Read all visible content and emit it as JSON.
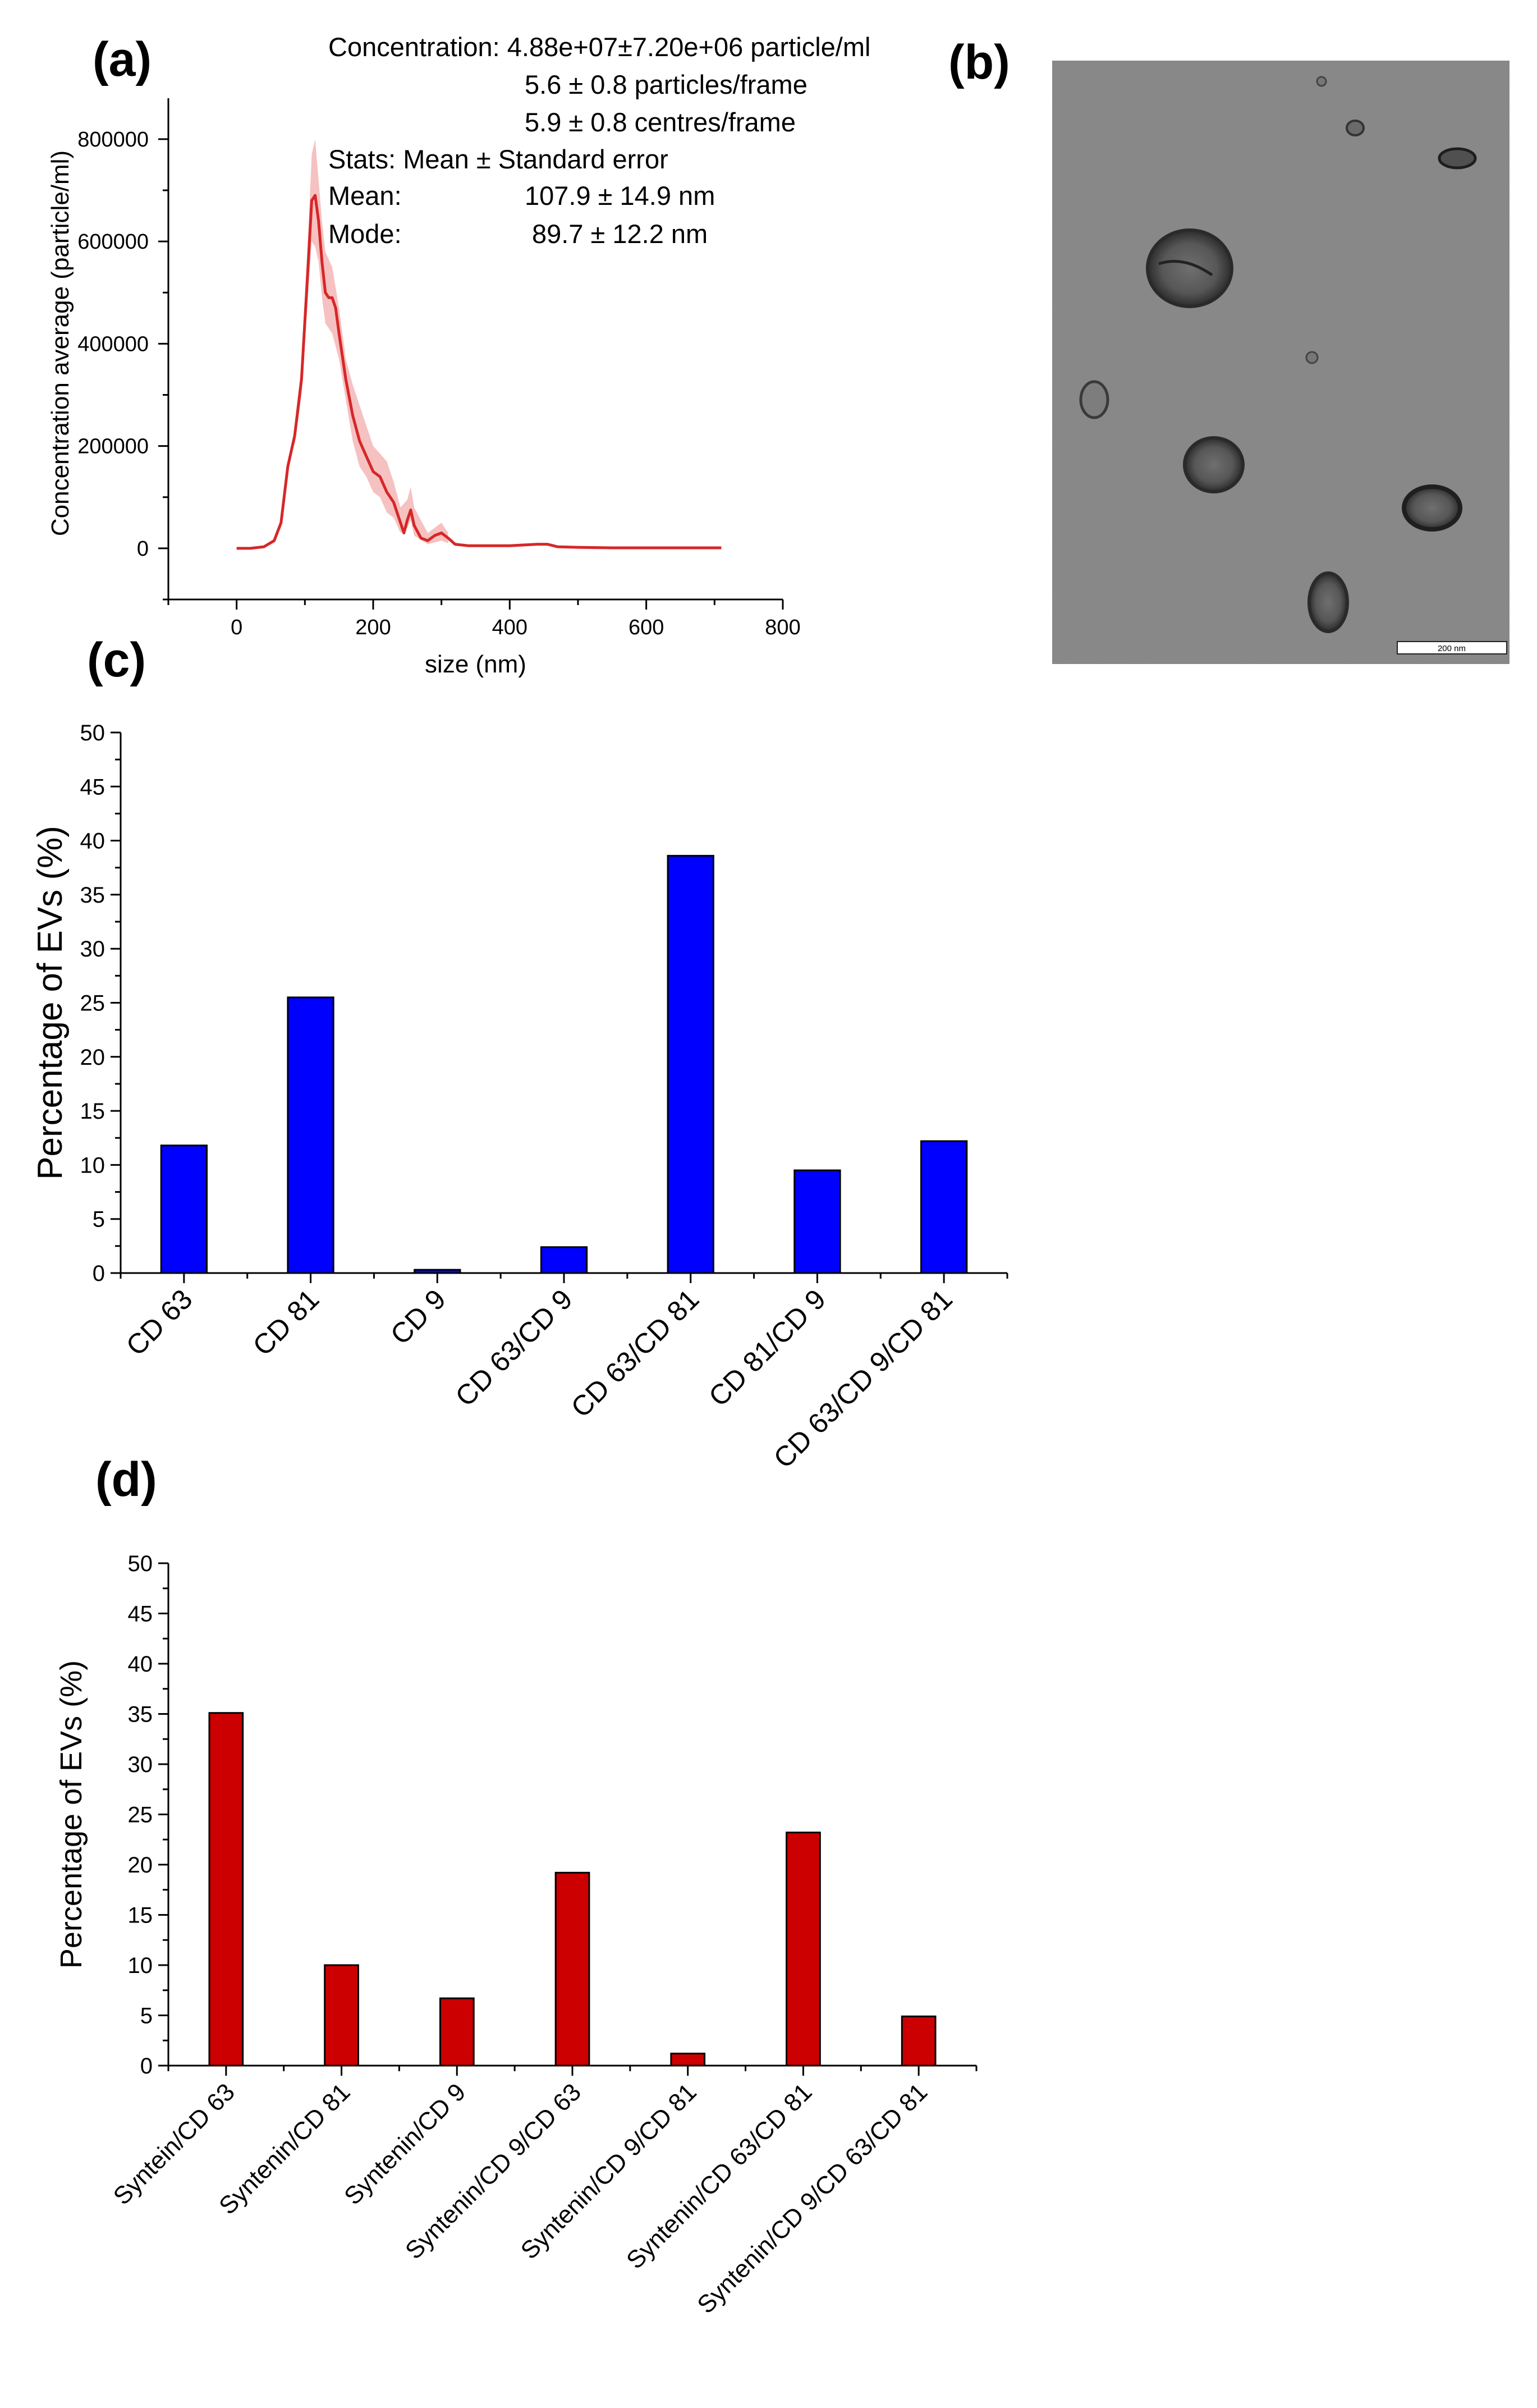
{
  "panel_labels": {
    "a": "(a)",
    "b": "(b)",
    "c": "(c)",
    "d": "(d)"
  },
  "colors": {
    "nta_line": "#d62728",
    "nta_band": "#f4b6b6",
    "bar_blue": "#0000ff",
    "bar_red": "#cc0000",
    "axis": "#000000",
    "tem_background": "#8e8e8e",
    "scale_bar_fill": "#ffffff"
  },
  "nta_stats": {
    "concentration": "Concentration: 4.88e+07±7.20e+06 particle/ml",
    "particles_per_frame": "5.6 ± 0.8 particles/frame",
    "centres_per_frame": "5.9 ± 0.8 centres/frame",
    "stats_header": "Stats: Mean ± Standard error",
    "mean_label": "Mean:",
    "mean_value": "107.9 ± 14.9 nm",
    "mode_label": "Mode:",
    "mode_value": "89.7 ± 12.2 nm"
  },
  "tem_image": {
    "scale_bar_label": "200 nm"
  },
  "chart_data": [
    {
      "id": "a",
      "type": "line",
      "title": "",
      "xlabel": "size (nm)",
      "ylabel": "Concentration average (particle/ml)",
      "xlim": [
        -100,
        800
      ],
      "ylim": [
        -100000,
        880000
      ],
      "xticks": [
        0,
        200,
        400,
        600,
        800
      ],
      "yticks": [
        0,
        200000,
        400000,
        600000,
        800000
      ],
      "series": [
        {
          "name": "Concentration average",
          "x": [
            0,
            20,
            40,
            55,
            65,
            75,
            85,
            95,
            105,
            110,
            115,
            120,
            125,
            130,
            135,
            140,
            145,
            150,
            160,
            170,
            180,
            190,
            200,
            210,
            220,
            230,
            240,
            245,
            250,
            255,
            260,
            270,
            280,
            290,
            300,
            310,
            320,
            340,
            360,
            400,
            440,
            455,
            470,
            500,
            550,
            600,
            650,
            710
          ],
          "y": [
            0,
            0,
            3000,
            15000,
            50000,
            160000,
            220000,
            330000,
            560000,
            680000,
            690000,
            640000,
            560000,
            500000,
            490000,
            490000,
            470000,
            420000,
            330000,
            260000,
            210000,
            180000,
            150000,
            140000,
            110000,
            90000,
            50000,
            30000,
            55000,
            75000,
            45000,
            20000,
            15000,
            25000,
            30000,
            20000,
            8000,
            5000,
            5000,
            5000,
            8000,
            8000,
            3000,
            2000,
            1000,
            1000,
            1000,
            1000
          ]
        },
        {
          "name": "Standard error band",
          "x": [
            85,
            95,
            105,
            110,
            115,
            120,
            125,
            130,
            140,
            150,
            160,
            170,
            180,
            190,
            200,
            210,
            220,
            230,
            240,
            250,
            255,
            260,
            280,
            300,
            310
          ],
          "upper": [
            240000,
            360000,
            620000,
            770000,
            800000,
            720000,
            640000,
            580000,
            550000,
            470000,
            370000,
            320000,
            280000,
            240000,
            200000,
            185000,
            170000,
            130000,
            80000,
            95000,
            120000,
            80000,
            30000,
            50000,
            30000
          ],
          "lower": [
            200000,
            300000,
            500000,
            600000,
            590000,
            560000,
            490000,
            440000,
            420000,
            370000,
            290000,
            210000,
            160000,
            140000,
            110000,
            100000,
            70000,
            60000,
            30000,
            40000,
            55000,
            25000,
            8000,
            15000,
            10000
          ]
        }
      ]
    },
    {
      "id": "c",
      "type": "bar",
      "title": "",
      "xlabel": "",
      "ylabel": "Percentage of EVs (%)",
      "ylim": [
        0,
        50
      ],
      "yticks": [
        0,
        5,
        10,
        15,
        20,
        25,
        30,
        35,
        40,
        45,
        50
      ],
      "categories": [
        "CD 63",
        "CD 81",
        "CD 9",
        "CD 63/CD 9",
        "CD 63/CD 81",
        "CD 81/CD 9",
        "CD 63/CD 9/CD 81"
      ],
      "values": [
        11.8,
        25.5,
        0.3,
        2.4,
        38.6,
        9.5,
        12.2
      ]
    },
    {
      "id": "d",
      "type": "bar",
      "title": "",
      "xlabel": "",
      "ylabel": "Percentage of EVs (%)",
      "ylim": [
        0,
        50
      ],
      "yticks": [
        0,
        5,
        10,
        15,
        20,
        25,
        30,
        35,
        40,
        45,
        50
      ],
      "categories": [
        "Syntein/CD 63",
        "Syntenin/CD 81",
        "Syntenin/CD 9",
        "Syntenin/CD 9/CD 63",
        "Syntenin/CD 9/CD 81",
        "Syntenin/CD 63/CD 81",
        "Syntenin/CD 9/CD 63/CD 81"
      ],
      "values": [
        35.1,
        10.0,
        6.7,
        19.2,
        1.2,
        23.2,
        4.9
      ]
    }
  ]
}
